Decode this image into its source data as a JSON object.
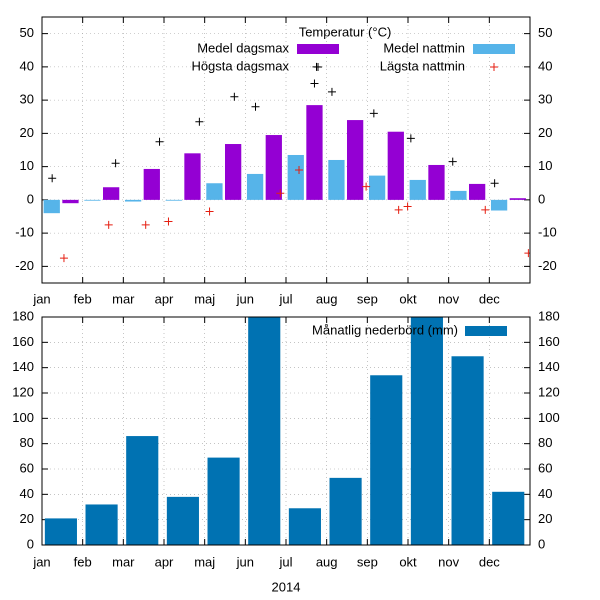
{
  "chart_data": [
    {
      "type": "bar",
      "legend_title": "Temperatur (°C)",
      "xlim": [
        0,
        12
      ],
      "xticks": [
        {
          "value": 0,
          "label": "jan"
        },
        {
          "value": 1,
          "label": "feb"
        },
        {
          "value": 2,
          "label": "mar"
        },
        {
          "value": 3,
          "label": "apr"
        },
        {
          "value": 4,
          "label": "maj"
        },
        {
          "value": 5,
          "label": "jun"
        },
        {
          "value": 6,
          "label": "jul"
        },
        {
          "value": 7,
          "label": "aug"
        },
        {
          "value": 8,
          "label": "sep"
        },
        {
          "value": 9,
          "label": "okt"
        },
        {
          "value": 10,
          "label": "nov"
        },
        {
          "value": 11,
          "label": "dec"
        }
      ],
      "ylim": [
        -25,
        55
      ],
      "yticks": [
        -20,
        -10,
        0,
        10,
        20,
        30,
        40,
        50
      ],
      "grid": true,
      "series": [
        {
          "name": "Medel dagsmax",
          "color": "#9400d3",
          "values": [
            -1,
            3.8,
            9.3,
            14,
            16.8,
            19.5,
            28.5,
            24,
            20.5,
            10.5,
            4.8,
            0.5
          ]
        },
        {
          "name": "Medel nattmin",
          "color": "#56b4e9",
          "values": [
            -4,
            -0.2,
            -0.5,
            -0.2,
            5,
            7.8,
            13.5,
            12,
            7.3,
            6,
            2.7,
            -3.2
          ]
        },
        {
          "name": "Högsta dagsmax",
          "color": "#000000",
          "type": "scatter",
          "x": [
            0.25,
            1.81,
            2.89,
            3.87,
            4.73,
            5.25,
            6.7,
            6.75,
            7.13,
            8.16,
            9.07,
            10.1,
            11.13
          ],
          "values": [
            6.5,
            11,
            17.5,
            23.5,
            31,
            28,
            35,
            40,
            32.5,
            26,
            18.5,
            11.5,
            5
          ]
        },
        {
          "name": "Lägsta nattmin",
          "color": "#e51e10",
          "type": "scatter",
          "x": [
            0.54,
            1.64,
            2.55,
            3.11,
            4.12,
            5.86,
            6.32,
            7.97,
            8.77,
            8.99,
            10.9,
            11.96
          ],
          "values": [
            -17.5,
            -7.5,
            -7.5,
            -6.5,
            -3.5,
            2,
            9,
            4,
            -3,
            -2,
            -3,
            -16
          ]
        }
      ]
    },
    {
      "type": "bar",
      "xlabel": "2014",
      "xlim": [
        0,
        12
      ],
      "xticks": [
        {
          "value": 0,
          "label": "jan"
        },
        {
          "value": 1,
          "label": "feb"
        },
        {
          "value": 2,
          "label": "mar"
        },
        {
          "value": 3,
          "label": "apr"
        },
        {
          "value": 4,
          "label": "maj"
        },
        {
          "value": 5,
          "label": "jun"
        },
        {
          "value": 6,
          "label": "jul"
        },
        {
          "value": 7,
          "label": "aug"
        },
        {
          "value": 8,
          "label": "sep"
        },
        {
          "value": 9,
          "label": "okt"
        },
        {
          "value": 10,
          "label": "nov"
        },
        {
          "value": 11,
          "label": "dec"
        }
      ],
      "ylim": [
        0,
        180
      ],
      "yticks": [
        0,
        20,
        40,
        60,
        80,
        100,
        120,
        140,
        160,
        180
      ],
      "grid": true,
      "series": [
        {
          "name": "Månatlig nederbörd (mm)",
          "color": "#0072b2",
          "values": [
            21,
            32,
            86,
            38,
            69,
            180,
            29,
            53,
            134,
            180,
            149,
            42
          ]
        }
      ]
    }
  ]
}
